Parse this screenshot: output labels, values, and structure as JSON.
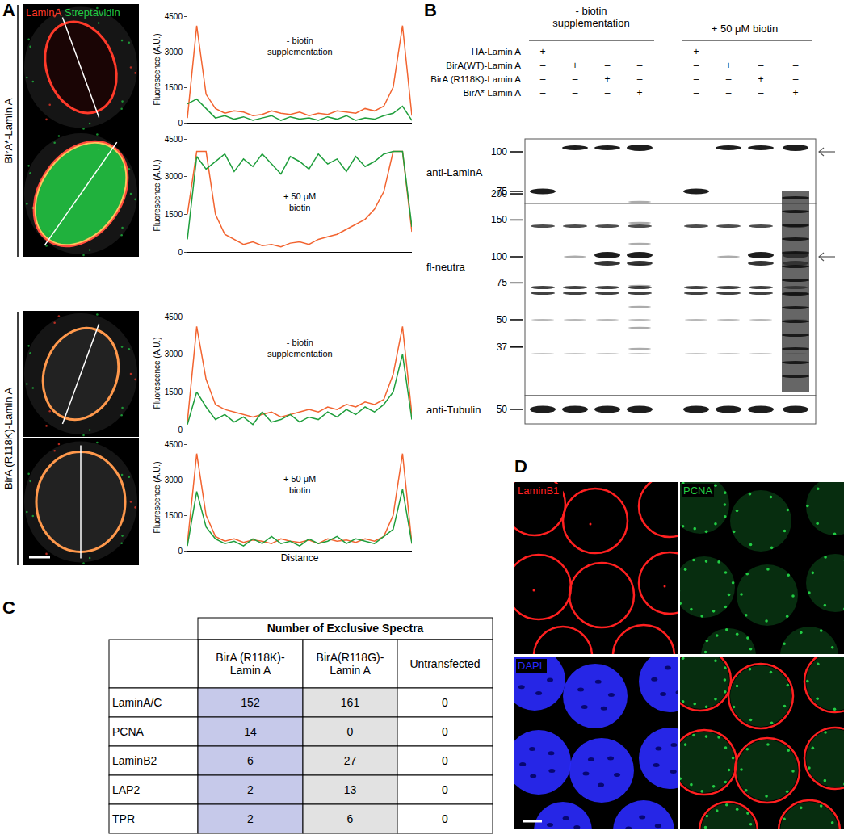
{
  "figure": {
    "A": {
      "label": "A",
      "channels": [
        {
          "name": "LaminA",
          "color": "#ff3a2a"
        },
        {
          "name": "Streptavidin",
          "color": "#22cc44"
        }
      ],
      "row_labels": [
        "BirA*-Lamin A",
        "BirA (R118K)-Lamin A"
      ]
    },
    "B": {
      "label": "B",
      "conditions": [
        "- biotin\nsupplementation",
        "+ 50 μM biotin"
      ],
      "constructs": [
        {
          "name": "HA-Lamin A",
          "lanes": [
            "+",
            "–",
            "–",
            "–",
            "+",
            "–",
            "–",
            "–"
          ]
        },
        {
          "name": "BirA(WT)-Lamin A",
          "lanes": [
            "–",
            "+",
            "–",
            "–",
            "–",
            "+",
            "–",
            "–"
          ]
        },
        {
          "name": "BirA (R118K)-Lamin A",
          "lanes": [
            "–",
            "–",
            "+",
            "–",
            "–",
            "–",
            "+",
            "–"
          ]
        },
        {
          "name": "BirA*-Lamin A",
          "lanes": [
            "–",
            "–",
            "–",
            "+",
            "–",
            "–",
            "–",
            "+"
          ]
        }
      ],
      "blots": [
        {
          "name": "anti-LaminA",
          "markers": [
            100,
            75
          ]
        },
        {
          "name": "fl-neutra",
          "markers": [
            200,
            150,
            100,
            75,
            50,
            37
          ]
        },
        {
          "name": "anti-Tubulin",
          "markers": [
            50
          ]
        }
      ]
    },
    "C": {
      "label": "C",
      "header": "Number of Exclusive Spectra",
      "columns": [
        "BirA (R118K)-\nLamin A",
        "BirA(R118G)-\nLamin A",
        "Untransfected"
      ],
      "colors": [
        "#c6c9ea",
        "#e2e2e2",
        "#ffffff"
      ],
      "rows": [
        {
          "name": "LaminA/C",
          "values": [
            152,
            161,
            0
          ]
        },
        {
          "name": "PCNA",
          "values": [
            14,
            0,
            0
          ]
        },
        {
          "name": "LaminB2",
          "values": [
            6,
            27,
            0
          ]
        },
        {
          "name": "LAP2",
          "values": [
            2,
            13,
            0
          ]
        },
        {
          "name": "TPR",
          "values": [
            2,
            6,
            0
          ]
        }
      ]
    },
    "D": {
      "label": "D",
      "channels": [
        {
          "name": "LaminB1",
          "color": "#ff2020"
        },
        {
          "name": "PCNA",
          "color": "#22cc44"
        },
        {
          "name": "DAPI",
          "color": "#2a2aff"
        }
      ]
    }
  },
  "chart_data": [
    {
      "type": "line",
      "annotation": "- biotin\nsupplementation",
      "ylabel": "Fluorescence (A.U.)",
      "x": [
        0,
        1,
        2,
        3,
        4,
        5,
        6,
        7,
        8,
        9,
        10,
        11,
        12,
        13,
        14,
        15,
        16,
        17,
        18,
        19,
        20,
        21,
        22,
        23,
        24
      ],
      "xlim": [
        0,
        24
      ],
      "ylim": [
        0,
        4500
      ],
      "yticks": [
        0,
        1500,
        3000,
        4500
      ],
      "grid": false,
      "tick_labels": "y",
      "series": [
        {
          "name": "LaminA",
          "color": "#f26430",
          "values": [
            200,
            4100,
            1200,
            600,
            400,
            500,
            450,
            300,
            350,
            500,
            400,
            350,
            450,
            300,
            400,
            350,
            500,
            450,
            400,
            600,
            500,
            700,
            1500,
            4100,
            300
          ]
        },
        {
          "name": "Streptavidin",
          "color": "#1f9e3c",
          "values": [
            800,
            1000,
            600,
            200,
            300,
            150,
            250,
            100,
            200,
            300,
            100,
            250,
            150,
            200,
            100,
            250,
            150,
            300,
            100,
            200,
            150,
            300,
            400,
            700,
            100
          ]
        }
      ]
    },
    {
      "type": "line",
      "annotation": "+ 50 μM\nbiotin",
      "ylabel": "Fluorescence (A.U.)",
      "x": [
        0,
        1,
        2,
        3,
        4,
        5,
        6,
        7,
        8,
        9,
        10,
        11,
        12,
        13,
        14,
        15,
        16,
        17,
        18,
        19,
        20,
        21,
        22,
        23,
        24
      ],
      "xlim": [
        0,
        24
      ],
      "ylim": [
        0,
        4500
      ],
      "yticks": [
        0,
        1500,
        3000,
        4500
      ],
      "grid": false,
      "tick_labels": "y",
      "series": [
        {
          "name": "LaminA",
          "color": "#f26430",
          "values": [
            1500,
            4000,
            4000,
            1500,
            700,
            500,
            300,
            400,
            250,
            300,
            200,
            350,
            400,
            300,
            500,
            600,
            700,
            900,
            1100,
            1300,
            1700,
            2400,
            4000,
            4000,
            800
          ]
        },
        {
          "name": "Streptavidin",
          "color": "#1f9e3c",
          "values": [
            500,
            3800,
            3300,
            3600,
            3900,
            3200,
            3700,
            3400,
            3900,
            3500,
            3100,
            3800,
            3600,
            3300,
            3900,
            3500,
            3700,
            3200,
            3800,
            3400,
            3600,
            3900,
            4000,
            4000,
            1000
          ]
        }
      ]
    },
    {
      "type": "line",
      "annotation": "- biotin\nsupplementation",
      "ylabel": "Fluorescence (A.U.)",
      "x": [
        0,
        1,
        2,
        3,
        4,
        5,
        6,
        7,
        8,
        9,
        10,
        11,
        12,
        13,
        14,
        15,
        16,
        17,
        18,
        19,
        20,
        21,
        22,
        23,
        24
      ],
      "xlim": [
        0,
        24
      ],
      "ylim": [
        0,
        4500
      ],
      "yticks": [
        0,
        1500,
        3000,
        4500
      ],
      "grid": false,
      "tick_labels": "y",
      "series": [
        {
          "name": "LaminA",
          "color": "#f26430",
          "values": [
            300,
            4100,
            2000,
            1000,
            800,
            700,
            600,
            500,
            600,
            700,
            500,
            600,
            700,
            800,
            700,
            900,
            800,
            1000,
            900,
            1100,
            1000,
            1200,
            2200,
            4100,
            600
          ]
        },
        {
          "name": "Streptavidin",
          "color": "#1f9e3c",
          "values": [
            200,
            1500,
            900,
            400,
            600,
            300,
            500,
            200,
            700,
            300,
            400,
            600,
            300,
            500,
            400,
            700,
            500,
            800,
            600,
            900,
            700,
            1000,
            1500,
            3000,
            400
          ]
        }
      ]
    },
    {
      "type": "line",
      "annotation": "+ 50 μM\nbiotin",
      "ylabel": "Fluorescence (A.U.)",
      "xlabel": "Distance",
      "x": [
        0,
        1,
        2,
        3,
        4,
        5,
        6,
        7,
        8,
        9,
        10,
        11,
        12,
        13,
        14,
        15,
        16,
        17,
        18,
        19,
        20,
        21,
        22,
        23,
        24
      ],
      "xlim": [
        0,
        24
      ],
      "ylim": [
        0,
        4500
      ],
      "yticks": [
        0,
        1500,
        3000,
        4500
      ],
      "grid": false,
      "tick_labels": "y",
      "series": [
        {
          "name": "LaminA",
          "color": "#f26430",
          "values": [
            300,
            4100,
            1500,
            600,
            400,
            500,
            350,
            450,
            400,
            300,
            500,
            400,
            350,
            450,
            300,
            500,
            400,
            450,
            350,
            500,
            400,
            600,
            1500,
            4100,
            300
          ]
        },
        {
          "name": "Streptavidin",
          "color": "#1f9e3c",
          "values": [
            200,
            2500,
            1000,
            500,
            300,
            400,
            200,
            500,
            300,
            600,
            300,
            400,
            200,
            500,
            300,
            400,
            600,
            300,
            500,
            400,
            300,
            600,
            900,
            2600,
            300
          ]
        }
      ]
    }
  ]
}
